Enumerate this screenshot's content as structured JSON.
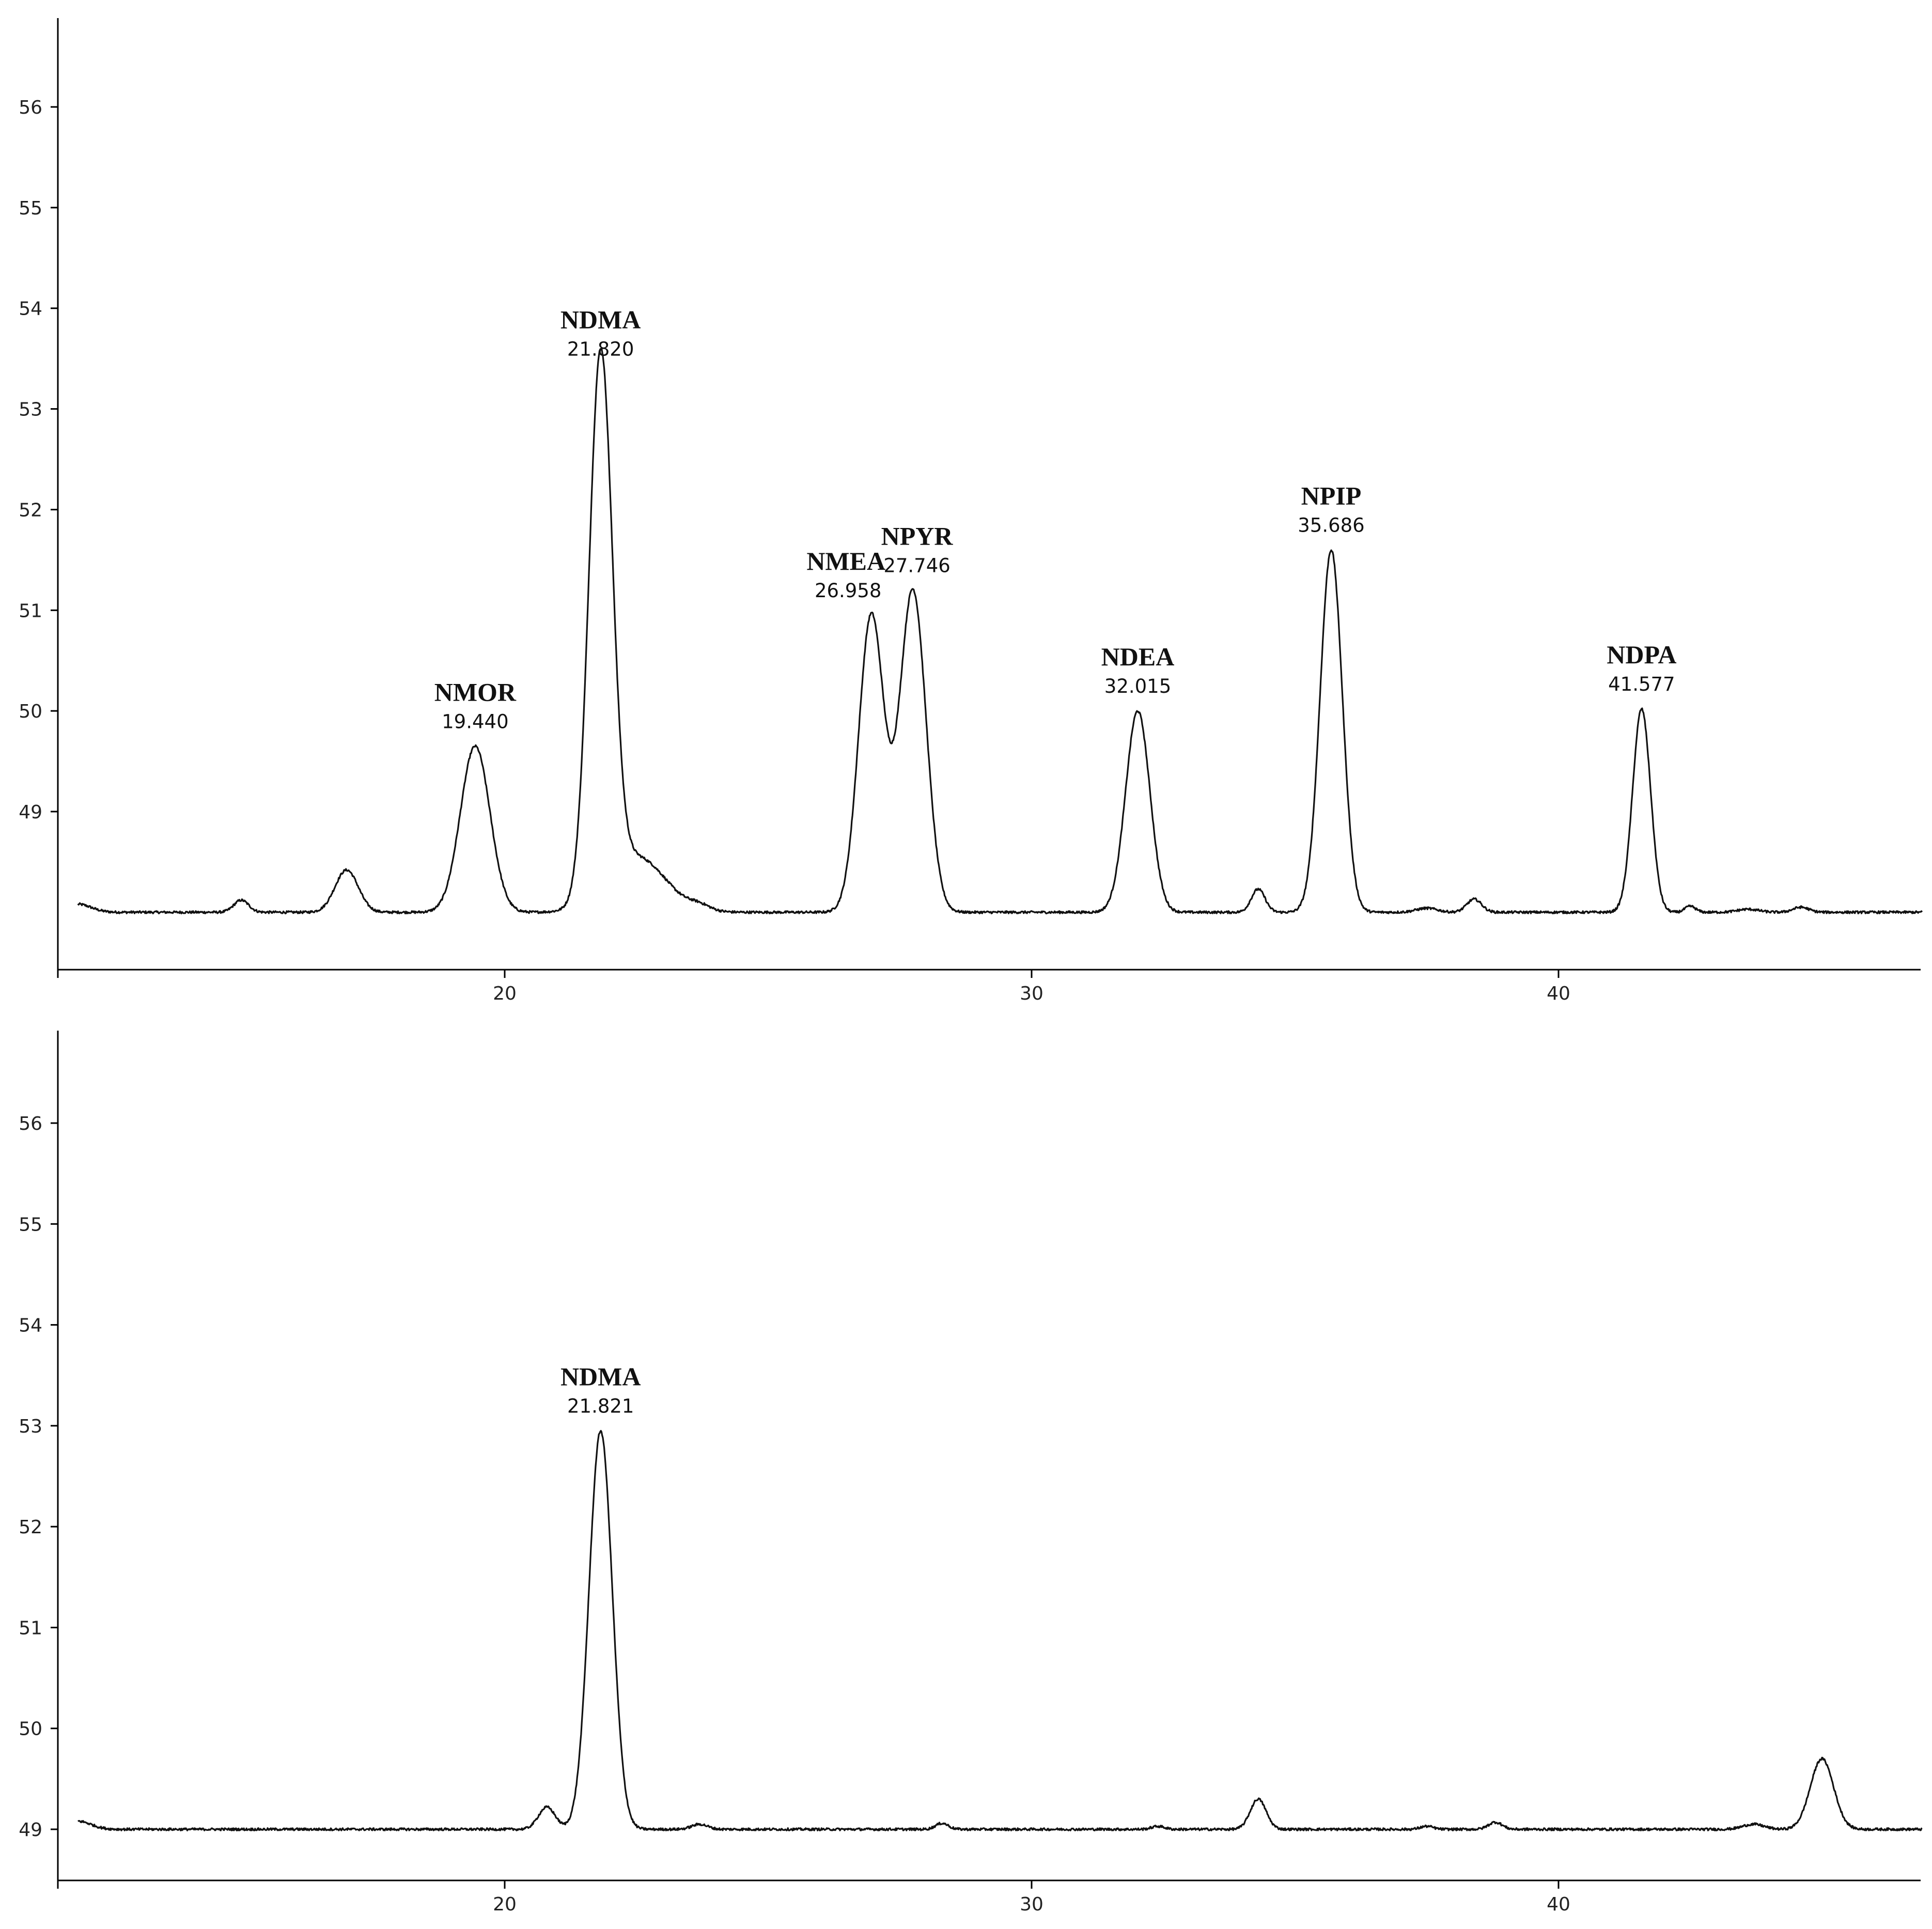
{
  "chart_data": [
    {
      "type": "line",
      "title": "",
      "xlabel": "",
      "ylabel": "",
      "xlim": [
        11.6,
        46.95
      ],
      "ylim": [
        47.45,
        56.9
      ],
      "x_ticks": [
        "20",
        "30",
        "40"
      ],
      "y_ticks": [
        "49",
        "50",
        "51",
        "52",
        "53",
        "54",
        "55",
        "56"
      ],
      "baseline": 48.0,
      "grid": false,
      "noise": 0.012,
      "peaks": [
        {
          "rt": 11.9,
          "height": 0.08,
          "width": 0.25
        },
        {
          "rt": 15.0,
          "height": 0.12,
          "width": 0.14
        },
        {
          "rt": 17.0,
          "height": 0.42,
          "width": 0.22
        },
        {
          "rt": 19.44,
          "height": 1.65,
          "width": 0.28,
          "name": "NMOR",
          "label_rt": "19.440"
        },
        {
          "rt": 21.82,
          "height": 5.35,
          "width": 0.22,
          "name": "NDMA",
          "label_rt": "21.820"
        },
        {
          "rt": 22.5,
          "height": 0.55,
          "width": 0.55
        },
        {
          "rt": 23.7,
          "height": 0.05,
          "width": 0.2
        },
        {
          "rt": 26.958,
          "height": 2.95,
          "width": 0.24,
          "name": "NMEA",
          "label_rt": "26.958"
        },
        {
          "rt": 27.746,
          "height": 3.2,
          "width": 0.25,
          "name": "NPYR",
          "label_rt": "27.746"
        },
        {
          "rt": 32.015,
          "height": 2.0,
          "width": 0.23,
          "name": "NDEA",
          "label_rt": "32.015"
        },
        {
          "rt": 34.3,
          "height": 0.23,
          "width": 0.13
        },
        {
          "rt": 35.686,
          "height": 3.6,
          "width": 0.21,
          "name": "NPIP",
          "label_rt": "35.686"
        },
        {
          "rt": 37.5,
          "height": 0.04,
          "width": 0.2
        },
        {
          "rt": 38.4,
          "height": 0.13,
          "width": 0.14
        },
        {
          "rt": 41.577,
          "height": 2.02,
          "width": 0.17,
          "name": "NDPA",
          "label_rt": "41.577"
        },
        {
          "rt": 42.5,
          "height": 0.06,
          "width": 0.1
        },
        {
          "rt": 43.6,
          "height": 0.03,
          "width": 0.2
        },
        {
          "rt": 44.6,
          "height": 0.05,
          "width": 0.15
        }
      ]
    },
    {
      "type": "line",
      "title": "",
      "xlabel": "",
      "ylabel": "",
      "xlim": [
        11.6,
        46.95
      ],
      "ylim": [
        48.45,
        56.9
      ],
      "x_ticks": [
        "20",
        "30",
        "40"
      ],
      "y_ticks": [
        "49",
        "50",
        "51",
        "52",
        "53",
        "54",
        "55",
        "56"
      ],
      "baseline": 49.0,
      "grid": false,
      "noise": 0.012,
      "peaks": [
        {
          "rt": 11.9,
          "height": 0.08,
          "width": 0.25
        },
        {
          "rt": 20.8,
          "height": 0.22,
          "width": 0.16
        },
        {
          "rt": 21.821,
          "height": 3.95,
          "width": 0.22,
          "name": "NDMA",
          "label_rt": "21.821"
        },
        {
          "rt": 23.7,
          "height": 0.05,
          "width": 0.15
        },
        {
          "rt": 28.3,
          "height": 0.06,
          "width": 0.12
        },
        {
          "rt": 32.4,
          "height": 0.03,
          "width": 0.12
        },
        {
          "rt": 34.3,
          "height": 0.3,
          "width": 0.15
        },
        {
          "rt": 37.5,
          "height": 0.03,
          "width": 0.12
        },
        {
          "rt": 38.8,
          "height": 0.07,
          "width": 0.13
        },
        {
          "rt": 43.7,
          "height": 0.05,
          "width": 0.2
        },
        {
          "rt": 45.0,
          "height": 0.7,
          "width": 0.22
        }
      ]
    }
  ]
}
